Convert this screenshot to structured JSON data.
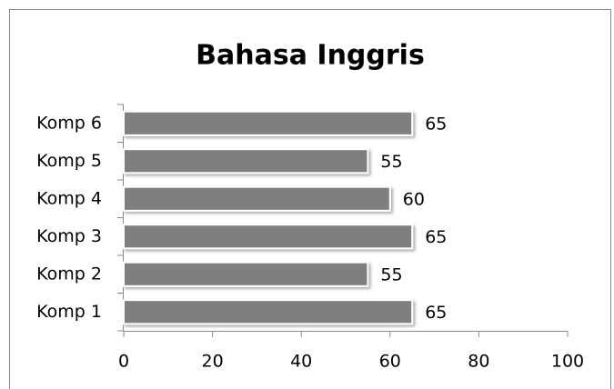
{
  "chart_data": {
    "type": "bar",
    "orientation": "horizontal",
    "title": "Bahasa Inggris",
    "categories": [
      "Komp 1",
      "Komp 2",
      "Komp 3",
      "Komp 4",
      "Komp 5",
      "Komp 6"
    ],
    "values": [
      65,
      55,
      65,
      60,
      55,
      65
    ],
    "color": "#7f7f7f",
    "xlim": [
      0,
      100
    ],
    "xticks": [
      0,
      20,
      40,
      60,
      80,
      100
    ],
    "grid": false,
    "data_labels": true
  }
}
